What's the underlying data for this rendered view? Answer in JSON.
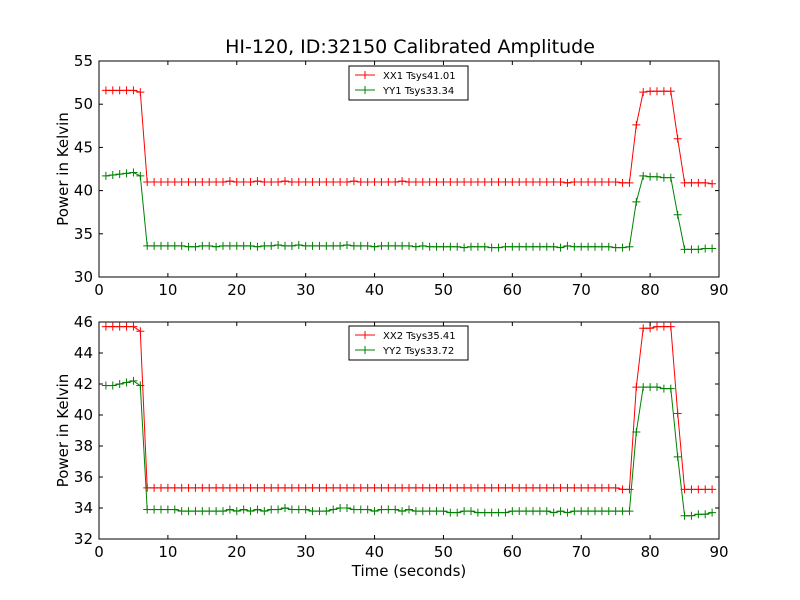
{
  "figure": {
    "title": "HI-120, ID:32150 Calibrated Amplitude"
  },
  "colors": {
    "xx": "#ff0000",
    "yy": "#008000"
  },
  "chart_data": [
    {
      "type": "line",
      "title": "HI-120, ID:32150 Calibrated Amplitude",
      "xlabel": "",
      "ylabel": "Power in Kelvin",
      "xlim": [
        0,
        90
      ],
      "ylim": [
        30,
        55
      ],
      "xticks": [
        "0",
        "10",
        "20",
        "30",
        "40",
        "50",
        "60",
        "70",
        "80",
        "90"
      ],
      "yticks": [
        "30",
        "35",
        "40",
        "45",
        "50",
        "55"
      ],
      "grid": false,
      "legend": "top-center",
      "series": [
        {
          "name": "XX1 Tsys41.01",
          "color": "#ff0000",
          "marker": "+",
          "x": [
            1,
            2,
            3,
            4,
            5,
            6,
            7,
            8,
            9,
            10,
            11,
            12,
            13,
            14,
            15,
            16,
            17,
            18,
            19,
            20,
            21,
            22,
            23,
            24,
            25,
            26,
            27,
            28,
            29,
            30,
            31,
            32,
            33,
            34,
            35,
            36,
            37,
            38,
            39,
            40,
            41,
            42,
            43,
            44,
            45,
            46,
            47,
            48,
            49,
            50,
            51,
            52,
            53,
            54,
            55,
            56,
            57,
            58,
            59,
            60,
            61,
            62,
            63,
            64,
            65,
            66,
            67,
            68,
            69,
            70,
            71,
            72,
            73,
            74,
            75,
            76,
            77,
            78,
            79,
            80,
            81,
            82,
            83,
            84,
            85,
            86,
            87,
            88,
            89
          ],
          "y": [
            51.6,
            51.6,
            51.6,
            51.6,
            51.6,
            51.4,
            41.0,
            41.0,
            41.0,
            41.0,
            41.0,
            41.0,
            41.0,
            41.0,
            41.0,
            41.0,
            41.0,
            41.0,
            41.1,
            41.0,
            41.0,
            41.0,
            41.1,
            41.0,
            41.0,
            41.0,
            41.1,
            41.0,
            41.0,
            41.0,
            41.0,
            41.0,
            41.0,
            41.0,
            41.0,
            41.0,
            41.1,
            41.0,
            41.0,
            41.0,
            41.0,
            41.0,
            41.0,
            41.1,
            41.0,
            41.0,
            41.0,
            41.0,
            41.0,
            41.0,
            41.0,
            41.0,
            41.0,
            41.0,
            41.0,
            41.0,
            41.0,
            41.0,
            41.0,
            41.0,
            41.0,
            41.0,
            41.0,
            41.0,
            41.0,
            41.0,
            41.0,
            40.9,
            41.0,
            41.0,
            41.0,
            41.0,
            41.0,
            41.0,
            41.0,
            40.9,
            40.9,
            47.6,
            51.4,
            51.5,
            51.5,
            51.5,
            51.5,
            46.0,
            40.9,
            40.9,
            40.9,
            40.9,
            40.8
          ]
        },
        {
          "name": "YY1 Tsys33.34",
          "color": "#008000",
          "marker": "+",
          "x": [
            1,
            2,
            3,
            4,
            5,
            6,
            7,
            8,
            9,
            10,
            11,
            12,
            13,
            14,
            15,
            16,
            17,
            18,
            19,
            20,
            21,
            22,
            23,
            24,
            25,
            26,
            27,
            28,
            29,
            30,
            31,
            32,
            33,
            34,
            35,
            36,
            37,
            38,
            39,
            40,
            41,
            42,
            43,
            44,
            45,
            46,
            47,
            48,
            49,
            50,
            51,
            52,
            53,
            54,
            55,
            56,
            57,
            58,
            59,
            60,
            61,
            62,
            63,
            64,
            65,
            66,
            67,
            68,
            69,
            70,
            71,
            72,
            73,
            74,
            75,
            76,
            77,
            78,
            79,
            80,
            81,
            82,
            83,
            84,
            85,
            86,
            87,
            88,
            89
          ],
          "y": [
            41.7,
            41.8,
            41.9,
            42.0,
            42.1,
            41.7,
            33.6,
            33.6,
            33.6,
            33.6,
            33.6,
            33.6,
            33.5,
            33.5,
            33.6,
            33.6,
            33.5,
            33.6,
            33.6,
            33.6,
            33.6,
            33.6,
            33.5,
            33.6,
            33.6,
            33.7,
            33.6,
            33.6,
            33.7,
            33.6,
            33.6,
            33.6,
            33.6,
            33.6,
            33.6,
            33.7,
            33.6,
            33.6,
            33.6,
            33.5,
            33.6,
            33.6,
            33.6,
            33.6,
            33.6,
            33.5,
            33.6,
            33.5,
            33.5,
            33.5,
            33.5,
            33.5,
            33.4,
            33.5,
            33.5,
            33.5,
            33.4,
            33.4,
            33.5,
            33.5,
            33.5,
            33.5,
            33.5,
            33.5,
            33.5,
            33.5,
            33.4,
            33.6,
            33.5,
            33.5,
            33.5,
            33.5,
            33.5,
            33.5,
            33.4,
            33.4,
            33.5,
            38.7,
            41.7,
            41.6,
            41.6,
            41.5,
            41.5,
            37.2,
            33.2,
            33.2,
            33.2,
            33.3,
            33.3
          ]
        }
      ]
    },
    {
      "type": "line",
      "title": "",
      "xlabel": "Time (seconds)",
      "ylabel": "Power in Kelvin",
      "xlim": [
        0,
        90
      ],
      "ylim": [
        32,
        46
      ],
      "xticks": [
        "0",
        "10",
        "20",
        "30",
        "40",
        "50",
        "60",
        "70",
        "80",
        "90"
      ],
      "yticks": [
        "32",
        "34",
        "36",
        "38",
        "40",
        "42",
        "44",
        "46"
      ],
      "grid": false,
      "legend": "top-center",
      "series": [
        {
          "name": "XX2 Tsys35.41",
          "color": "#ff0000",
          "marker": "+",
          "x": [
            1,
            2,
            3,
            4,
            5,
            6,
            7,
            8,
            9,
            10,
            11,
            12,
            13,
            14,
            15,
            16,
            17,
            18,
            19,
            20,
            21,
            22,
            23,
            24,
            25,
            26,
            27,
            28,
            29,
            30,
            31,
            32,
            33,
            34,
            35,
            36,
            37,
            38,
            39,
            40,
            41,
            42,
            43,
            44,
            45,
            46,
            47,
            48,
            49,
            50,
            51,
            52,
            53,
            54,
            55,
            56,
            57,
            58,
            59,
            60,
            61,
            62,
            63,
            64,
            65,
            66,
            67,
            68,
            69,
            70,
            71,
            72,
            73,
            74,
            75,
            76,
            77,
            78,
            79,
            80,
            81,
            82,
            83,
            84,
            85,
            86,
            87,
            88,
            89
          ],
          "y": [
            45.7,
            45.7,
            45.7,
            45.7,
            45.7,
            45.4,
            35.3,
            35.3,
            35.3,
            35.3,
            35.3,
            35.3,
            35.3,
            35.3,
            35.3,
            35.3,
            35.3,
            35.3,
            35.3,
            35.3,
            35.3,
            35.3,
            35.3,
            35.3,
            35.3,
            35.3,
            35.3,
            35.3,
            35.3,
            35.3,
            35.3,
            35.3,
            35.3,
            35.3,
            35.3,
            35.3,
            35.3,
            35.3,
            35.3,
            35.3,
            35.3,
            35.3,
            35.3,
            35.3,
            35.3,
            35.3,
            35.3,
            35.3,
            35.3,
            35.3,
            35.3,
            35.3,
            35.3,
            35.3,
            35.3,
            35.3,
            35.3,
            35.3,
            35.3,
            35.3,
            35.3,
            35.3,
            35.3,
            35.3,
            35.3,
            35.3,
            35.3,
            35.3,
            35.3,
            35.3,
            35.3,
            35.3,
            35.3,
            35.3,
            35.3,
            35.2,
            35.2,
            41.8,
            45.6,
            45.6,
            45.7,
            45.7,
            45.7,
            40.1,
            35.2,
            35.2,
            35.2,
            35.2,
            35.2
          ]
        },
        {
          "name": "YY2 Tsys33.72",
          "color": "#008000",
          "marker": "+",
          "x": [
            1,
            2,
            3,
            4,
            5,
            6,
            7,
            8,
            9,
            10,
            11,
            12,
            13,
            14,
            15,
            16,
            17,
            18,
            19,
            20,
            21,
            22,
            23,
            24,
            25,
            26,
            27,
            28,
            29,
            30,
            31,
            32,
            33,
            34,
            35,
            36,
            37,
            38,
            39,
            40,
            41,
            42,
            43,
            44,
            45,
            46,
            47,
            48,
            49,
            50,
            51,
            52,
            53,
            54,
            55,
            56,
            57,
            58,
            59,
            60,
            61,
            62,
            63,
            64,
            65,
            66,
            67,
            68,
            69,
            70,
            71,
            72,
            73,
            74,
            75,
            76,
            77,
            78,
            79,
            80,
            81,
            82,
            83,
            84,
            85,
            86,
            87,
            88,
            89
          ],
          "y": [
            41.9,
            41.9,
            42.0,
            42.1,
            42.2,
            41.9,
            33.9,
            33.9,
            33.9,
            33.9,
            33.9,
            33.8,
            33.8,
            33.8,
            33.8,
            33.8,
            33.8,
            33.8,
            33.9,
            33.8,
            33.9,
            33.8,
            33.9,
            33.8,
            33.9,
            33.9,
            34.0,
            33.9,
            33.9,
            33.9,
            33.8,
            33.8,
            33.8,
            33.9,
            34.0,
            34.0,
            33.9,
            33.9,
            33.9,
            33.8,
            33.9,
            33.9,
            33.9,
            33.8,
            33.9,
            33.8,
            33.8,
            33.8,
            33.8,
            33.8,
            33.7,
            33.7,
            33.8,
            33.8,
            33.7,
            33.7,
            33.7,
            33.7,
            33.7,
            33.8,
            33.8,
            33.8,
            33.8,
            33.8,
            33.8,
            33.7,
            33.8,
            33.7,
            33.8,
            33.8,
            33.8,
            33.8,
            33.8,
            33.8,
            33.8,
            33.8,
            33.8,
            38.9,
            41.8,
            41.8,
            41.8,
            41.7,
            41.7,
            37.3,
            33.5,
            33.5,
            33.6,
            33.6,
            33.7
          ]
        }
      ]
    }
  ]
}
